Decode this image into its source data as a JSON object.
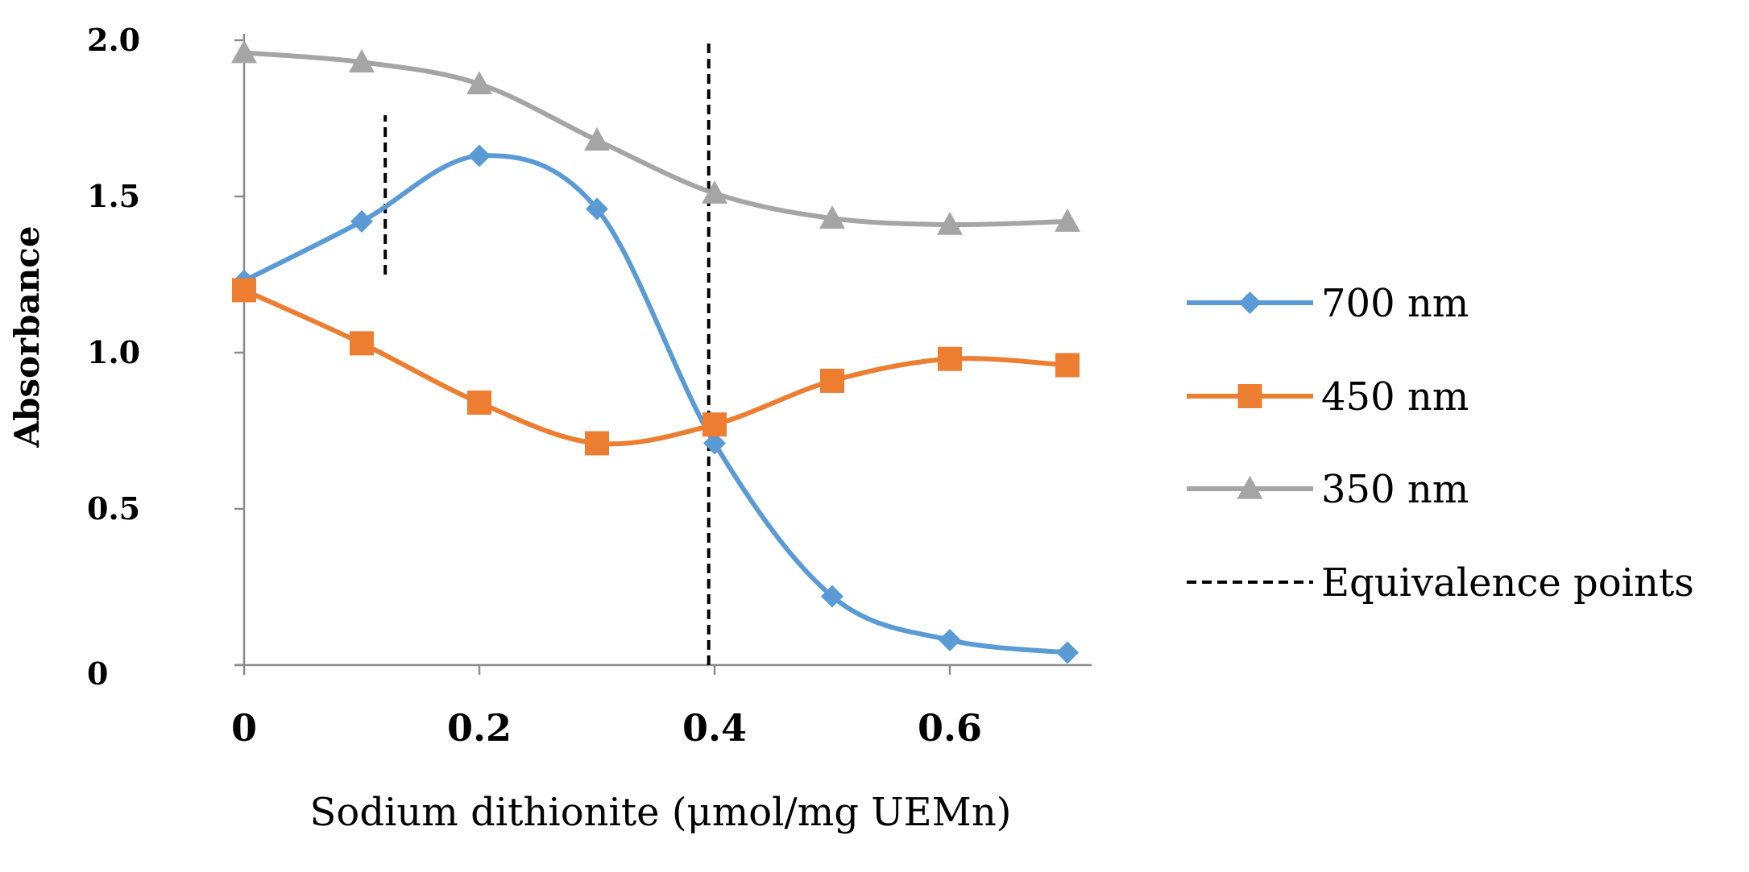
{
  "chart_data": {
    "type": "line",
    "title": "",
    "xlabel": "Sodium dithionite (μmol/mg UEMn)",
    "ylabel": "Absorbance",
    "x": [
      0,
      0.1,
      0.2,
      0.3,
      0.4,
      0.5,
      0.6,
      0.7
    ],
    "xlim": [
      0,
      0.7
    ],
    "ylim": [
      0,
      2.0
    ],
    "x_ticks": [
      0,
      0.2,
      0.4,
      0.6
    ],
    "x_tick_labels": [
      "0",
      "0.2",
      "0.4",
      "0.6"
    ],
    "y_ticks": [
      0,
      0.5,
      1.0,
      1.5,
      2.0
    ],
    "y_tick_labels": [
      "0",
      "0.5",
      "1.0",
      "1.5",
      "2.0"
    ],
    "grid": false,
    "legend_position": "right",
    "series": [
      {
        "name": "700 nm",
        "color": "#5b9bd5",
        "marker": "diamond",
        "smooth": true,
        "values": [
          1.23,
          1.42,
          1.63,
          1.46,
          0.71,
          0.22,
          0.08,
          0.04
        ]
      },
      {
        "name": "450 nm",
        "color": "#ed7d31",
        "marker": "square",
        "smooth": true,
        "values": [
          1.2,
          1.03,
          0.84,
          0.71,
          0.77,
          0.91,
          0.98,
          0.96
        ]
      },
      {
        "name": "350 nm",
        "color": "#a5a5a5",
        "marker": "triangle",
        "smooth": true,
        "values": [
          1.96,
          1.93,
          1.86,
          1.68,
          1.51,
          1.43,
          1.41,
          1.42
        ]
      }
    ],
    "equivalence_points": {
      "name": "Equivalence points",
      "color": "#000000",
      "lines": [
        {
          "x": 0.12,
          "y_from": 1.25,
          "y_to": 1.76
        },
        {
          "x": 0.395,
          "y_from": 0,
          "y_to": 2.0
        }
      ]
    }
  }
}
